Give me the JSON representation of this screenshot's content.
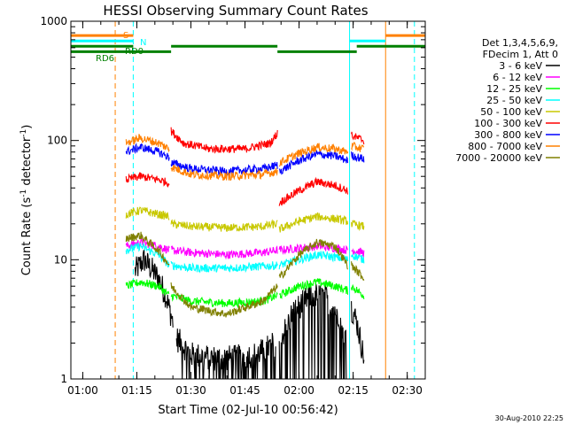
{
  "chart_data": {
    "type": "line",
    "title": "HESSI Observing Summary Count Rates",
    "xlabel": "Start Time (02-Jul-10 00:56:42)",
    "ylabel": "Count Rate (s^-1 detector^-1)",
    "ylabel_base": "Count Rate (s",
    "ylabel_sup1": "-1",
    "ylabel_mid": " detector",
    "ylabel_sup2": "-1",
    "ylabel_end": ")",
    "y_scale": "log",
    "ylim": [
      1,
      1000
    ],
    "xlim": [
      "00:56:42",
      "02:35:00"
    ],
    "x_ticks": [
      "01:00",
      "01:15",
      "01:30",
      "01:45",
      "02:00",
      "02:15",
      "02:30"
    ],
    "y_ticks": [
      "1",
      "10",
      "100",
      "1000"
    ],
    "legend_header": [
      "Det 1,3,4,5,6,9,",
      "FDecim 1, Att 0"
    ],
    "legend_placement": "top-right outside",
    "flag_labels": {
      "saa": "S",
      "night": "N",
      "decimation_front": "RD0",
      "decimation_rear": "RD6"
    },
    "timestamp": "30-Aug-2010 22:25",
    "vertical_markers": [
      {
        "time": "00:56:42",
        "color": "#00ffff",
        "style": "solid"
      },
      {
        "time": "01:09:00",
        "color": "#ff8000",
        "style": "dashed"
      },
      {
        "time": "01:14:00",
        "color": "#00ffff",
        "style": "dashed"
      },
      {
        "time": "02:14:00",
        "color": "#00ffff",
        "style": "solid"
      },
      {
        "time": "02:24:00",
        "color": "#ff8000",
        "style": "solid"
      },
      {
        "time": "02:32:00",
        "color": "#00ffff",
        "style": "dashed"
      }
    ],
    "intervals": [
      {
        "start": "01:24:30",
        "end": "01:54:00",
        "kind": "day"
      },
      {
        "start": "02:16:00",
        "end": "02:19:00",
        "kind": "day"
      }
    ],
    "series": [
      {
        "name": "3 - 6 keV",
        "color": "#000000",
        "segments": [
          [
            [
              "01:14:30",
              8
            ],
            [
              "01:17:00",
              10
            ],
            [
              "01:21:00",
              7
            ],
            [
              "01:23:00",
              5
            ],
            [
              "01:25:00",
              3
            ]
          ],
          [
            [
              "01:26:00",
              2.2
            ],
            [
              "01:30:00",
              1.6
            ],
            [
              "01:36:00",
              1.5
            ],
            [
              "01:42:00",
              1.5
            ],
            [
              "01:48:00",
              1.6
            ],
            [
              "01:53:30",
              2
            ]
          ],
          [
            [
              "01:54:30",
              2
            ],
            [
              "01:58:00",
              3.5
            ],
            [
              "02:03:00",
              5
            ],
            [
              "02:07:00",
              5
            ],
            [
              "02:11:00",
              3.5
            ],
            [
              "02:13:30",
              2
            ]
          ],
          [
            [
              "02:14:30",
              4
            ],
            [
              "02:16:00",
              3
            ],
            [
              "02:18:00",
              1.5
            ]
          ]
        ]
      },
      {
        "name": "6 - 12 keV",
        "color": "#ff00ff",
        "segments": [
          [
            [
              "01:12:00",
              13
            ],
            [
              "01:16:00",
              14
            ],
            [
              "01:21:00",
              13
            ],
            [
              "01:24:00",
              12
            ]
          ],
          [
            [
              "01:24:30",
              12
            ],
            [
              "01:30:00",
              11.5
            ],
            [
              "01:40:00",
              11
            ],
            [
              "01:50:00",
              11.5
            ],
            [
              "01:54:00",
              12
            ]
          ],
          [
            [
              "01:54:30",
              12
            ],
            [
              "02:00:00",
              12.5
            ],
            [
              "02:05:00",
              13
            ],
            [
              "02:10:00",
              12.5
            ],
            [
              "02:13:30",
              12
            ]
          ],
          [
            [
              "02:14:30",
              12
            ],
            [
              "02:18:00",
              11.5
            ]
          ]
        ]
      },
      {
        "name": "12 - 25 keV",
        "color": "#00ff00",
        "segments": [
          [
            [
              "01:12:00",
              6
            ],
            [
              "01:16:00",
              6.5
            ],
            [
              "01:21:00",
              6
            ],
            [
              "01:24:00",
              5
            ]
          ],
          [
            [
              "01:24:30",
              5
            ],
            [
              "01:30:00",
              4.5
            ],
            [
              "01:40:00",
              4.3
            ],
            [
              "01:50:00",
              4.5
            ],
            [
              "01:54:00",
              5
            ]
          ],
          [
            [
              "01:54:30",
              5
            ],
            [
              "02:00:00",
              6
            ],
            [
              "02:05:00",
              6.5
            ],
            [
              "02:10:00",
              6
            ],
            [
              "02:13:30",
              5.5
            ]
          ],
          [
            [
              "02:14:30",
              6
            ],
            [
              "02:18:00",
              5
            ]
          ]
        ]
      },
      {
        "name": "25 - 50 keV",
        "color": "#00ffff",
        "segments": [
          [
            [
              "01:12:00",
              12
            ],
            [
              "01:16:00",
              13
            ],
            [
              "01:21:00",
              11
            ],
            [
              "01:24:00",
              9
            ]
          ],
          [
            [
              "01:24:30",
              9
            ],
            [
              "01:30:00",
              8.5
            ],
            [
              "01:40:00",
              8.5
            ],
            [
              "01:50:00",
              8.8
            ],
            [
              "01:54:00",
              9
            ]
          ],
          [
            [
              "01:54:30",
              9
            ],
            [
              "02:00:00",
              10
            ],
            [
              "02:05:00",
              11
            ],
            [
              "02:10:00",
              10.5
            ],
            [
              "02:13:30",
              10
            ]
          ],
          [
            [
              "02:14:30",
              11
            ],
            [
              "02:18:00",
              10
            ]
          ]
        ]
      },
      {
        "name": "50 - 100 keV",
        "color": "#c8c800",
        "segments": [
          [
            [
              "01:12:00",
              24
            ],
            [
              "01:16:00",
              26
            ],
            [
              "01:21:00",
              24
            ],
            [
              "01:24:00",
              23
            ]
          ],
          [
            [
              "01:24:30",
              20
            ],
            [
              "01:30:00",
              19
            ],
            [
              "01:40:00",
              18.5
            ],
            [
              "01:50:00",
              19
            ],
            [
              "01:54:00",
              20
            ]
          ],
          [
            [
              "01:54:30",
              18
            ],
            [
              "02:00:00",
              21
            ],
            [
              "02:05:00",
              23
            ],
            [
              "02:10:00",
              22
            ],
            [
              "02:13:30",
              21
            ]
          ],
          [
            [
              "02:14:30",
              20
            ],
            [
              "02:18:00",
              19
            ]
          ]
        ]
      },
      {
        "name": "100 - 300 keV",
        "color": "#ff0000",
        "segments": [
          [
            [
              "01:12:00",
              47
            ],
            [
              "01:16:00",
              50
            ],
            [
              "01:21:00",
              47
            ],
            [
              "01:24:00",
              44
            ]
          ],
          [
            [
              "01:24:30",
              120
            ],
            [
              "01:28:00",
              95
            ],
            [
              "01:35:00",
              85
            ],
            [
              "01:45:00",
              85
            ],
            [
              "01:52:00",
              95
            ],
            [
              "01:54:00",
              115
            ]
          ],
          [
            [
              "01:54:30",
              30
            ],
            [
              "02:00:00",
              38
            ],
            [
              "02:05:00",
              45
            ],
            [
              "02:10:00",
              42
            ],
            [
              "02:13:30",
              38
            ]
          ],
          [
            [
              "02:14:30",
              110
            ],
            [
              "02:18:00",
              100
            ]
          ]
        ]
      },
      {
        "name": "300 - 800 keV",
        "color": "#0000ff",
        "segments": [
          [
            [
              "01:12:00",
              80
            ],
            [
              "01:16:00",
              88
            ],
            [
              "01:21:00",
              80
            ],
            [
              "01:24:00",
              72
            ]
          ],
          [
            [
              "01:24:30",
              65
            ],
            [
              "01:30:00",
              58
            ],
            [
              "01:40:00",
              55
            ],
            [
              "01:50:00",
              58
            ],
            [
              "01:54:00",
              62
            ]
          ],
          [
            [
              "01:54:30",
              55
            ],
            [
              "02:00:00",
              68
            ],
            [
              "02:05:00",
              77
            ],
            [
              "02:10:00",
              74
            ],
            [
              "02:13:30",
              68
            ]
          ],
          [
            [
              "02:14:30",
              75
            ],
            [
              "02:18:00",
              70
            ]
          ]
        ]
      },
      {
        "name": "800 - 7000 keV",
        "color": "#ff8000",
        "segments": [
          [
            [
              "01:12:00",
              95
            ],
            [
              "01:16:00",
              105
            ],
            [
              "01:21:00",
              95
            ],
            [
              "01:24:00",
              85
            ]
          ],
          [
            [
              "01:24:30",
              60
            ],
            [
              "01:30:00",
              52
            ],
            [
              "01:40:00",
              50
            ],
            [
              "01:50:00",
              52
            ],
            [
              "01:54:00",
              55
            ]
          ],
          [
            [
              "01:54:30",
              65
            ],
            [
              "02:00:00",
              78
            ],
            [
              "02:05:00",
              88
            ],
            [
              "02:10:00",
              85
            ],
            [
              "02:13:30",
              80
            ]
          ],
          [
            [
              "02:14:30",
              90
            ],
            [
              "02:18:00",
              85
            ]
          ]
        ]
      },
      {
        "name": "7000 - 20000 keV",
        "color": "#808000",
        "segments": [
          [
            [
              "01:12:00",
              15
            ],
            [
              "01:16:00",
              16
            ],
            [
              "01:21:00",
              12
            ],
            [
              "01:24:00",
              9
            ]
          ],
          [
            [
              "01:24:30",
              6
            ],
            [
              "01:30:00",
              4
            ],
            [
              "01:40:00",
              3.5
            ],
            [
              "01:50:00",
              4.5
            ],
            [
              "01:54:00",
              6
            ]
          ],
          [
            [
              "01:54:30",
              7
            ],
            [
              "02:00:00",
              11
            ],
            [
              "02:05:00",
              14
            ],
            [
              "02:10:00",
              13
            ],
            [
              "02:13:30",
              9
            ]
          ],
          [
            [
              "02:14:30",
              9
            ],
            [
              "02:18:00",
              7
            ]
          ]
        ]
      }
    ],
    "flag_bars": [
      {
        "label_key": "saa",
        "color": "#ff8000",
        "level": 0.96,
        "segments": [
          [
            "00:56:42",
            "01:14:00"
          ],
          [
            "02:24:00",
            "02:35:00"
          ]
        ]
      },
      {
        "label_key": "night",
        "color": "#00ffff",
        "level": 0.945,
        "segments": [
          [
            "00:56:42",
            "01:14:00"
          ],
          [
            "02:14:00",
            "02:24:00"
          ]
        ]
      },
      {
        "label_key": "decimation_front",
        "color": "#008000",
        "level": 0.93,
        "segments": [
          [
            "00:56:42",
            "01:14:00"
          ],
          [
            "01:24:30",
            "01:54:00"
          ],
          [
            "02:16:00",
            "02:35:00"
          ]
        ]
      },
      {
        "label_key": "decimation_rear",
        "color": "#008000",
        "level": 0.915,
        "segments": [
          [
            "00:56:42",
            "01:24:30"
          ],
          [
            "01:54:00",
            "02:16:00"
          ]
        ]
      }
    ]
  }
}
